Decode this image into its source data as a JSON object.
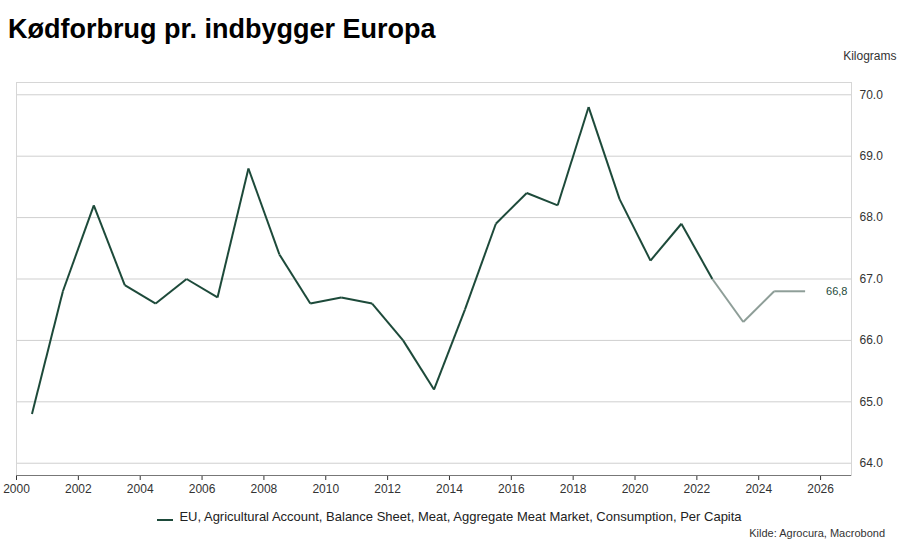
{
  "chart_data": {
    "type": "line",
    "title": "Kødforbrug pr. indbygger Europa",
    "y_label": "Kilograms",
    "source": "Kilde: Agrocura, Macrobond",
    "x": [
      2000.5,
      2001.5,
      2002.5,
      2003.5,
      2004.5,
      2005.5,
      2006.5,
      2007.5,
      2008.5,
      2009.5,
      2010.5,
      2011.5,
      2012.5,
      2013.5,
      2014.5,
      2015.5,
      2016.5,
      2017.5,
      2018.5,
      2019.5,
      2020.5,
      2021.5,
      2022.5,
      2023.5,
      2024.5,
      2025.5
    ],
    "series": [
      {
        "name": "EU, Agricultural Account, Balance Sheet, Meat, Aggregate Meat Market, Consumption, Per Capita",
        "color": "#1d4a3a",
        "colors": [
          "#1d4a3a",
          "#1d4a3a",
          "#1d4a3a",
          "#1d4a3a",
          "#1d4a3a",
          "#1d4a3a",
          "#1d4a3a",
          "#1d4a3a",
          "#1d4a3a",
          "#1d4a3a",
          "#1d4a3a",
          "#1d4a3a",
          "#1d4a3a",
          "#1d4a3a",
          "#1d4a3a",
          "#1d4a3a",
          "#1d4a3a",
          "#1d4a3a",
          "#1d4a3a",
          "#1d4a3a",
          "#1d4a3a",
          "#1d4a3a",
          "#1d4a3a",
          "#8e9e98",
          "#8e9e98",
          "#8e9e98"
        ],
        "values": [
          64.8,
          66.8,
          68.2,
          66.9,
          66.6,
          67.0,
          66.7,
          68.8,
          67.4,
          66.6,
          66.7,
          66.6,
          66.0,
          65.2,
          66.5,
          67.9,
          68.4,
          68.2,
          69.8,
          68.3,
          67.3,
          67.9,
          67.0,
          66.3,
          66.8,
          66.8
        ]
      }
    ],
    "annotations": [
      {
        "value": 66.8,
        "label": "66,8"
      }
    ],
    "xlim": [
      2000,
      2027
    ],
    "xticks": [
      2000,
      2002,
      2004,
      2006,
      2008,
      2010,
      2012,
      2014,
      2016,
      2018,
      2020,
      2022,
      2024,
      2026
    ],
    "ylim": [
      63.8,
      70.2
    ],
    "yticks": [
      64,
      65,
      66,
      67,
      68,
      69,
      70
    ],
    "grid": true
  }
}
